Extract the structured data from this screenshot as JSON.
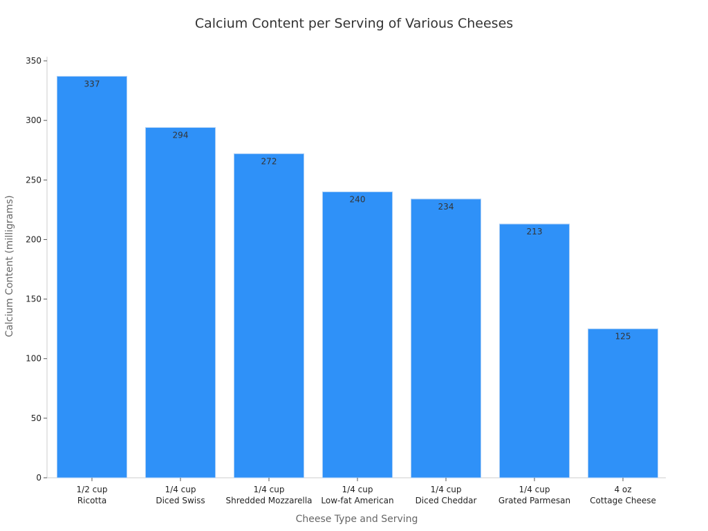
{
  "chart_data": {
    "type": "bar",
    "title": "Calcium Content per Serving of Various Cheeses",
    "xlabel": "Cheese Type and Serving",
    "ylabel": "Calcium Content (milligrams)",
    "categories": [
      [
        "1/2 cup",
        "Ricotta"
      ],
      [
        "1/4 cup",
        "Diced Swiss"
      ],
      [
        "1/4 cup",
        "Shredded Mozzarella"
      ],
      [
        "1/4 cup",
        "Low-fat American"
      ],
      [
        "1/4 cup",
        "Diced Cheddar"
      ],
      [
        "1/4 cup",
        "Grated Parmesan"
      ],
      [
        "4 oz",
        "Cottage Cheese"
      ]
    ],
    "values": [
      337,
      294,
      272,
      240,
      234,
      213,
      125
    ],
    "ylim": [
      0,
      350
    ],
    "yticks": [
      0,
      50,
      100,
      150,
      200,
      250,
      300,
      350
    ],
    "grid": false,
    "bar_color": "#2f91f8",
    "bar_edge_color": "#a9cdf5"
  }
}
